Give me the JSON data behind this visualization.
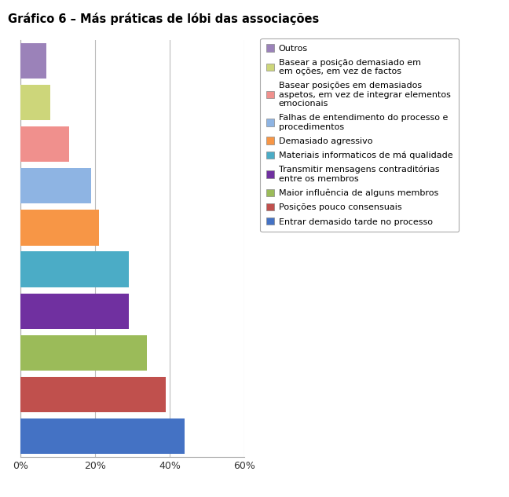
{
  "title": "Gráfico 6 – Más práticas de lóbi das associações",
  "legend_labels": [
    "Outros",
    "Basear a posição demasiado em\nem oções, em vez de factos",
    "Basear posições em demasiados\naspetos, em vez de integrar elementos\nemocionais",
    "Falhas de entendimento do processo e\nprocedimentos",
    "Demasiado agressivo",
    "Materiais informaticos de má qualidade",
    "Transmitir mensagens contraditórias\nentre os membros",
    "Maior influência de alguns membros",
    "Posições pouco consensuais",
    "Entrar demasido tarde no processo"
  ],
  "values": [
    44,
    39,
    34,
    29,
    29,
    21,
    19,
    13,
    8,
    7
  ],
  "bar_colors": [
    "#4472C4",
    "#C0504D",
    "#9BBB59",
    "#7030A0",
    "#4BACC6",
    "#F79646",
    "#8EB4E3",
    "#F0908D",
    "#CDD67A",
    "#9B82B9"
  ],
  "legend_colors": [
    "#9B82B9",
    "#CDD67A",
    "#F0908D",
    "#8EB4E3",
    "#F79646",
    "#4BACC6",
    "#7030A0",
    "#9BBB59",
    "#C0504D",
    "#4472C4"
  ],
  "xlim": [
    0,
    60
  ],
  "xticks": [
    0,
    20,
    40,
    60
  ],
  "xticklabels": [
    "0%",
    "20%",
    "40%",
    "60%"
  ],
  "background_color": "#FFFFFF",
  "title_fontsize": 10.5,
  "tick_fontsize": 9,
  "legend_fontsize": 8,
  "bar_height": 0.85
}
